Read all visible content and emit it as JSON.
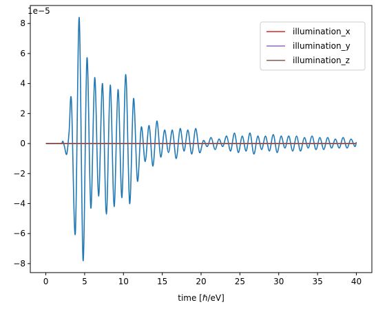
{
  "chart_data": {
    "type": "line",
    "title": "",
    "xlabel": "time [ℏ/eV]",
    "ylabel": "",
    "y_offset_label": "1e−5",
    "xlim": [
      -2,
      42
    ],
    "ylim": [
      -8.6,
      9.2
    ],
    "x_ticks": [
      0,
      5,
      10,
      15,
      20,
      25,
      30,
      35,
      40
    ],
    "x_tick_labels": [
      "0",
      "5",
      "10",
      "15",
      "20",
      "25",
      "30",
      "35",
      "40"
    ],
    "y_ticks": [
      -8,
      -6,
      -4,
      -2,
      0,
      2,
      4,
      6,
      8
    ],
    "y_tick_labels": [
      "−8",
      "−6",
      "−4",
      "−2",
      "0",
      "2",
      "4",
      "6",
      "8"
    ],
    "grid": false,
    "legend_position": "top-right",
    "series": [
      {
        "name": "",
        "color": "#1f77b4",
        "x": [
          0,
          1,
          2,
          2.2,
          2.4,
          2.7,
          3.0,
          3.3,
          3.8,
          4.3,
          4.8,
          5.3,
          5.8,
          6.3,
          6.8,
          7.3,
          7.8,
          8.3,
          8.8,
          9.3,
          9.8,
          10.3,
          10.8,
          11.3,
          11.8,
          12.3,
          12.8,
          13.3,
          13.8,
          14.3,
          14.8,
          15.3,
          15.8,
          16.3,
          16.8,
          17.3,
          17.8,
          18.3,
          18.8,
          19.3,
          19.8,
          20.3,
          20.8,
          21.3,
          21.8,
          22.3,
          22.8,
          23.3,
          23.8,
          24.3,
          24.8,
          25.3,
          25.8,
          26.3,
          26.8,
          27.3,
          27.8,
          28.3,
          28.8,
          29.3,
          29.8,
          30.3,
          30.8,
          31.3,
          31.8,
          32.3,
          32.8,
          33.3,
          33.8,
          34.3,
          34.8,
          35.3,
          35.8,
          36.3,
          36.8,
          37.3,
          37.8,
          38.3,
          38.8,
          39.3,
          39.8,
          40.0
        ],
        "y": [
          0.0,
          0.0,
          0.02,
          0.15,
          -0.2,
          -0.7,
          0.8,
          2.85,
          -6.0,
          8.4,
          -7.8,
          5.7,
          -4.3,
          4.4,
          -3.5,
          4.0,
          -4.7,
          3.9,
          -4.2,
          3.6,
          -3.6,
          4.6,
          -4.0,
          3.0,
          -2.5,
          1.1,
          -1.2,
          1.2,
          -1.5,
          1.5,
          -0.9,
          0.9,
          -0.6,
          0.9,
          -1.0,
          1.0,
          -0.5,
          0.9,
          -0.7,
          1.0,
          -0.6,
          0.2,
          -0.2,
          0.4,
          -0.4,
          0.3,
          -0.2,
          0.5,
          -0.5,
          0.7,
          -0.6,
          0.5,
          -0.5,
          0.7,
          -0.7,
          0.5,
          -0.4,
          0.5,
          -0.5,
          0.6,
          -0.6,
          0.5,
          -0.3,
          0.5,
          -0.5,
          0.5,
          -0.5,
          0.4,
          -0.3,
          0.5,
          -0.4,
          0.4,
          -0.4,
          0.4,
          -0.3,
          0.3,
          -0.3,
          0.4,
          -0.3,
          0.3,
          -0.2,
          0.1
        ]
      },
      {
        "name": "illumination_x",
        "color": "#d62728",
        "x": [
          0,
          40
        ],
        "y": [
          0,
          0
        ]
      },
      {
        "name": "illumination_y",
        "color": "#9467bd",
        "x": [
          0,
          40
        ],
        "y": [
          0,
          0
        ]
      },
      {
        "name": "illumination_z",
        "color": "#8c564b",
        "x": [
          0,
          40
        ],
        "y": [
          0,
          0
        ]
      }
    ],
    "legend": [
      {
        "label": "illumination_x",
        "color": "#d62728"
      },
      {
        "label": "illumination_y",
        "color": "#9467bd"
      },
      {
        "label": "illumination_z",
        "color": "#8c564b"
      }
    ]
  }
}
